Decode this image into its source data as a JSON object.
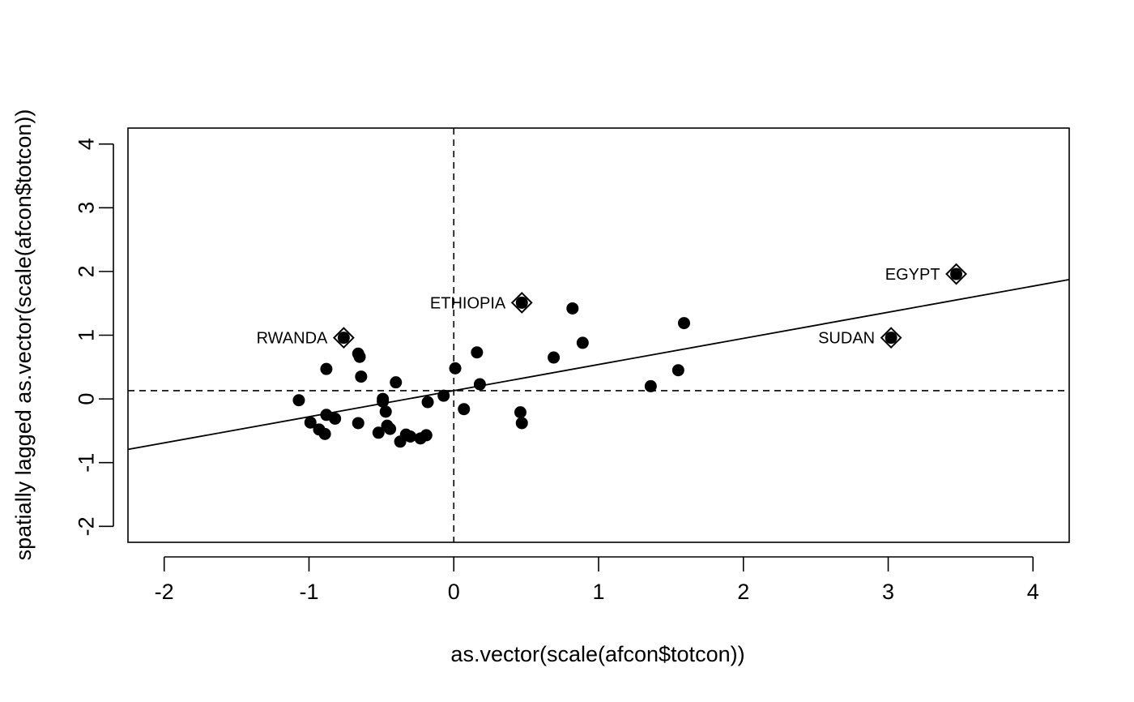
{
  "chart_data": {
    "type": "scatter",
    "title": "",
    "xlabel": "as.vector(scale(afcon$totcon))",
    "ylabel": "spatially lagged as.vector(scale(afcon$totcon))",
    "xlim": [
      -2.25,
      4.25
    ],
    "ylim": [
      -2.25,
      4.25
    ],
    "x_ticks": [
      -2,
      -1,
      0,
      1,
      2,
      3,
      4
    ],
    "y_ticks": [
      -2,
      -1,
      0,
      1,
      2,
      3,
      4
    ],
    "x_tick_labels": [
      "-2",
      "-1",
      "0",
      "1",
      "2",
      "3",
      "4"
    ],
    "y_tick_labels": [
      "-2",
      "-1",
      "0",
      "1",
      "2",
      "3",
      "4"
    ],
    "grid": false,
    "mean_lines": {
      "x": 0.0,
      "y": 0.13
    },
    "regression_line": {
      "intercept": 0.13,
      "slope": 0.41
    },
    "points": [
      {
        "x": -1.07,
        "y": -0.02
      },
      {
        "x": -0.99,
        "y": -0.37
      },
      {
        "x": -0.93,
        "y": -0.48
      },
      {
        "x": -0.89,
        "y": -0.55
      },
      {
        "x": -0.88,
        "y": -0.25
      },
      {
        "x": -0.88,
        "y": 0.47
      },
      {
        "x": -0.82,
        "y": -0.31
      },
      {
        "x": -0.66,
        "y": 0.71
      },
      {
        "x": -0.65,
        "y": 0.66
      },
      {
        "x": -0.64,
        "y": 0.35
      },
      {
        "x": -0.66,
        "y": -0.38
      },
      {
        "x": -0.52,
        "y": -0.53
      },
      {
        "x": -0.49,
        "y": 0.0
      },
      {
        "x": -0.49,
        "y": -0.04
      },
      {
        "x": -0.47,
        "y": -0.2
      },
      {
        "x": -0.46,
        "y": -0.42
      },
      {
        "x": -0.44,
        "y": -0.47
      },
      {
        "x": -0.4,
        "y": 0.26
      },
      {
        "x": -0.37,
        "y": -0.67
      },
      {
        "x": -0.33,
        "y": -0.56
      },
      {
        "x": -0.3,
        "y": -0.59
      },
      {
        "x": -0.23,
        "y": -0.62
      },
      {
        "x": -0.19,
        "y": -0.57
      },
      {
        "x": -0.18,
        "y": -0.05
      },
      {
        "x": -0.07,
        "y": 0.05
      },
      {
        "x": 0.01,
        "y": 0.48
      },
      {
        "x": 0.07,
        "y": -0.16
      },
      {
        "x": 0.16,
        "y": 0.73
      },
      {
        "x": 0.18,
        "y": 0.23
      },
      {
        "x": 0.46,
        "y": -0.21
      },
      {
        "x": 0.47,
        "y": -0.38
      },
      {
        "x": 0.69,
        "y": 0.65
      },
      {
        "x": 0.82,
        "y": 1.42
      },
      {
        "x": 0.89,
        "y": 0.88
      },
      {
        "x": 1.36,
        "y": 0.2
      },
      {
        "x": 1.55,
        "y": 0.45
      },
      {
        "x": 1.59,
        "y": 1.19
      }
    ],
    "influential": [
      {
        "x": -0.76,
        "y": 0.96,
        "label": "RWANDA"
      },
      {
        "x": 0.47,
        "y": 1.51,
        "label": "ETHIOPIA"
      },
      {
        "x": 3.02,
        "y": 0.96,
        "label": "SUDAN"
      },
      {
        "x": 3.47,
        "y": 1.96,
        "label": "EGYPT"
      }
    ]
  }
}
